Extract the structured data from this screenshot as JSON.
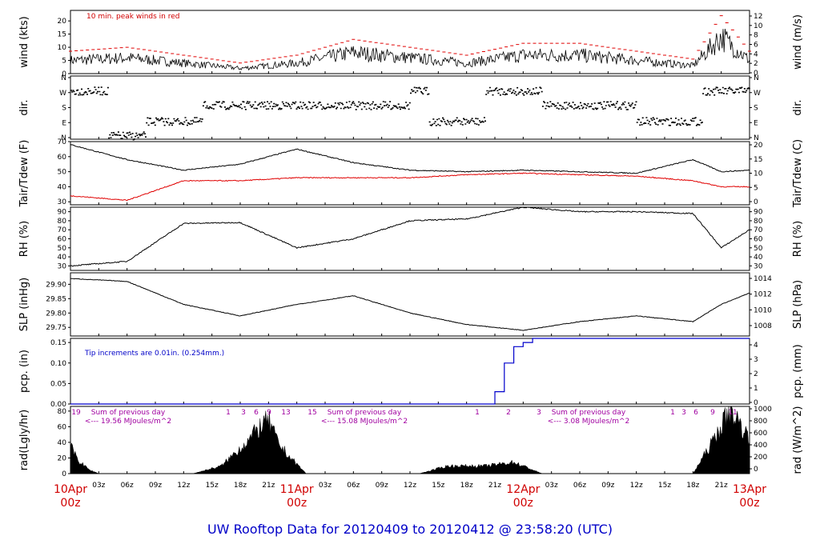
{
  "title": "UW Rooftop Data for 20120409  to  20120412 @ 23:58:20  (UTC)",
  "colors": {
    "peak": "#e00000",
    "dew": "#e00000",
    "pcp": "#0000cc",
    "text_blue": "#0000c8",
    "annot": "#a000a0",
    "date": "#d00000"
  },
  "x_axis": {
    "hour_ticks": [
      "03z",
      "06z",
      "09z",
      "12z",
      "15z",
      "18z",
      "21z"
    ],
    "days": [
      {
        "date": "10Apr",
        "time": "00z"
      },
      {
        "date": "11Apr",
        "time": "00z"
      },
      {
        "date": "12Apr",
        "time": "00z"
      },
      {
        "date": "13Apr",
        "time": "00z"
      }
    ]
  },
  "chart_data": [
    {
      "type": "line",
      "id": "wind",
      "ylabel": "wind (kts)",
      "ylabel_right": "wind (m/s)",
      "ylim": [
        0,
        24
      ],
      "yticks": [
        "0",
        "5",
        "10",
        "15",
        "20"
      ],
      "yticks_right": [
        "0",
        "2",
        "4",
        "6",
        "8",
        "10",
        "12"
      ],
      "annotation": "10 min. peak winds in red",
      "x_hours": [
        0,
        6,
        12,
        18,
        24,
        30,
        36,
        42,
        48,
        54,
        60,
        66,
        69,
        72
      ],
      "values": [
        5,
        6,
        4,
        2,
        4,
        8,
        6,
        4,
        7,
        7,
        5,
        3,
        14,
        5
      ],
      "series": [
        {
          "values": [
            5,
            6,
            4,
            2,
            4,
            8,
            6,
            4,
            7,
            7,
            5,
            3,
            14,
            5
          ]
        }
      ]
    },
    {
      "type": "scatter",
      "id": "dir",
      "ylabel": "dir.",
      "ylabel_right": "dir.",
      "yticks": [
        "N",
        "E",
        "S",
        "W",
        "N"
      ],
      "yticks_right": [
        "N",
        "E",
        "S",
        "W",
        "N"
      ]
    },
    {
      "type": "line",
      "id": "temp",
      "ylabel": "Tair/Tdew (F)",
      "ylabel_right": "Tair/Tdew (C)",
      "ylim": [
        28,
        70
      ],
      "yticks": [
        "30",
        "40",
        "50",
        "60",
        "70"
      ],
      "yticks_right": [
        "0",
        "5",
        "10",
        "15",
        "20"
      ],
      "x_hours": [
        0,
        6,
        12,
        18,
        24,
        30,
        36,
        42,
        48,
        54,
        60,
        66,
        69,
        72
      ],
      "series": [
        {
          "values": [
            68,
            58,
            51,
            55,
            65,
            56,
            51,
            50,
            51,
            50,
            49,
            58,
            50,
            51
          ]
        },
        {
          "values": [
            34,
            31,
            44,
            44,
            46,
            46,
            46,
            48,
            49,
            48,
            47,
            44,
            40,
            40
          ]
        }
      ]
    },
    {
      "type": "line",
      "id": "rh",
      "ylabel": "RH (%)",
      "ylabel_right": "RH (%)",
      "ylim": [
        25,
        95
      ],
      "yticks": [
        "30",
        "40",
        "50",
        "60",
        "70",
        "80",
        "90"
      ],
      "yticks_right": [
        "30",
        "40",
        "50",
        "60",
        "70",
        "80",
        "90"
      ],
      "x_hours": [
        0,
        6,
        12,
        18,
        24,
        30,
        36,
        42,
        48,
        54,
        60,
        66,
        69,
        72
      ],
      "values": [
        30,
        35,
        77,
        78,
        50,
        60,
        80,
        82,
        95,
        90,
        90,
        88,
        50,
        70
      ]
    },
    {
      "type": "line",
      "id": "slp",
      "ylabel": "SLP (inHg)",
      "ylabel_right": "SLP (hPa)",
      "ylim": [
        29.72,
        29.94
      ],
      "yticks": [
        "29.75",
        "29.80",
        "29.85",
        "29.90"
      ],
      "yticks_right": [
        "1008",
        "1010",
        "1012",
        "1014"
      ],
      "x_hours": [
        0,
        6,
        12,
        18,
        24,
        30,
        36,
        42,
        48,
        54,
        60,
        66,
        69,
        72
      ],
      "values": [
        29.92,
        29.91,
        29.83,
        29.79,
        29.83,
        29.86,
        29.8,
        29.76,
        29.74,
        29.77,
        29.79,
        29.77,
        29.83,
        29.87
      ]
    },
    {
      "type": "line",
      "id": "pcp",
      "ylabel": "pcp. (in)",
      "ylabel_right": "pcp. (mm)",
      "ylim": [
        0,
        0.16
      ],
      "yticks": [
        "0.00",
        "0.05",
        "0.10",
        "0.15"
      ],
      "yticks_right": [
        "0",
        "1",
        "2",
        "3",
        "4"
      ],
      "annotation": "Tip increments are 0.01in. (0.254mm.)",
      "x_hours": [
        0,
        44,
        45,
        46,
        47,
        48,
        49,
        50,
        72
      ],
      "values": [
        0,
        0,
        0.03,
        0.1,
        0.14,
        0.15,
        0.16,
        0.16,
        0.16
      ]
    },
    {
      "type": "area",
      "id": "rad",
      "ylabel": "rad(Lgly/hr)",
      "ylabel_right": "rad (W/m^2)",
      "ylim": [
        0,
        86
      ],
      "yticks": [
        "0",
        "20",
        "40",
        "60",
        "80"
      ],
      "yticks_right": [
        "0",
        "200",
        "400",
        "600",
        "800",
        "1000"
      ],
      "x_hours": [
        0,
        1,
        2,
        3,
        13,
        16,
        19,
        20,
        21,
        22,
        23,
        25,
        37,
        40,
        44,
        47,
        50,
        66,
        68,
        70,
        72
      ],
      "values": [
        35,
        15,
        5,
        0,
        0,
        10,
        45,
        60,
        70,
        40,
        25,
        0,
        0,
        10,
        10,
        15,
        0,
        0,
        40,
        85,
        45
      ],
      "day_sums": [
        {
          "label": "Sum of previous day",
          "value": "<--- 19.56 MJoules/m^2"
        },
        {
          "label": "Sum of previous day",
          "value": "<--- 15.08 MJoules/m^2"
        },
        {
          "label": "Sum of previous day",
          "value": "<--- 3.08 MJoules/m^2"
        }
      ],
      "hour_labels": [
        "19",
        "1",
        "3",
        "6",
        "9",
        "13",
        "15",
        "1",
        "2",
        "3",
        "1",
        "3",
        "6",
        "9",
        "11"
      ]
    }
  ]
}
